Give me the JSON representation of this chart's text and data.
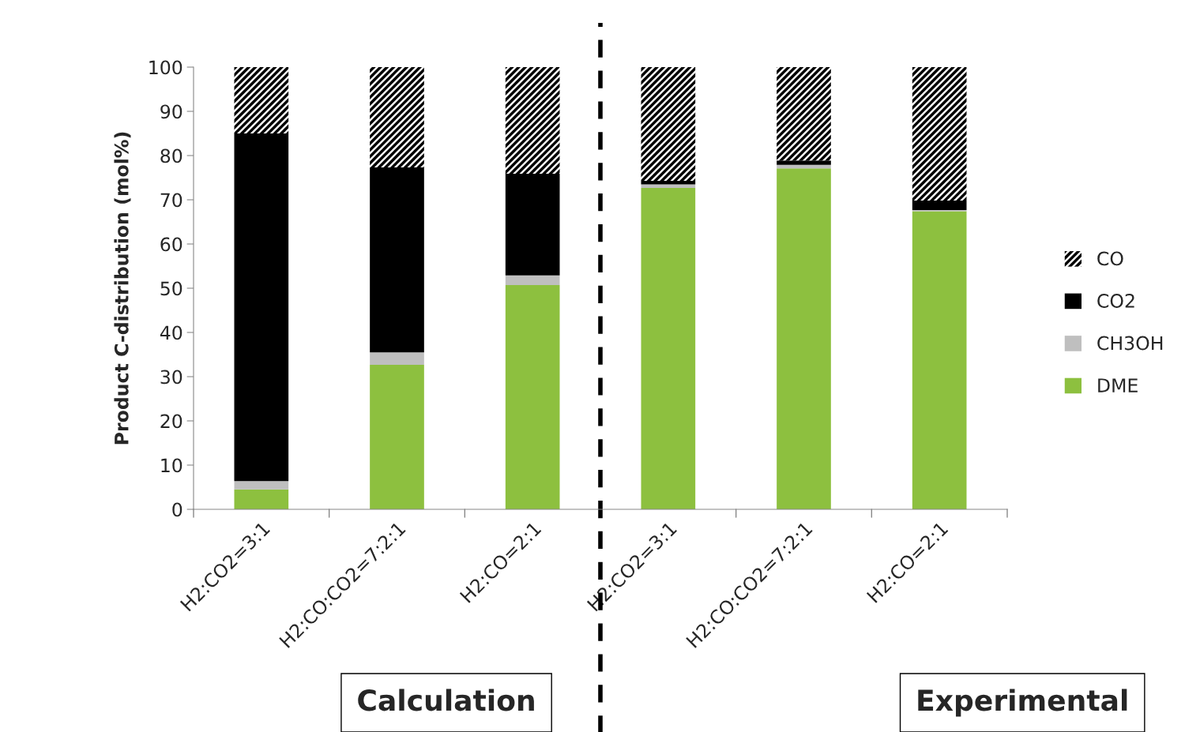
{
  "chart_data": {
    "type": "bar",
    "stacked": true,
    "ylabel": "Product C-distribution (mol%)",
    "categories": [
      "H2:CO2=3:1",
      "H2:CO:CO2=7:2:1",
      "H2:CO=2:1",
      "H2:CO2=3:1",
      "H2:CO:CO2=7:2:1",
      "H2:CO=2:1"
    ],
    "series": [
      {
        "name": "DME",
        "color": "#8dc03f",
        "values": [
          4.5,
          32.7,
          50.7,
          72.7,
          77.1,
          67.4
        ]
      },
      {
        "name": "CH3OH",
        "color": "#bfbfbf",
        "values": [
          1.9,
          2.8,
          2.2,
          0.8,
          0.8,
          0.3
        ]
      },
      {
        "name": "CO2",
        "color": "#000000",
        "values": [
          78.6,
          41.8,
          23.0,
          0.8,
          1.0,
          2.1
        ]
      },
      {
        "name": "CO",
        "color": "#000000",
        "values": [
          15.0,
          22.7,
          24.1,
          25.7,
          21.1,
          30.2
        ]
      }
    ],
    "ylim": [
      0,
      100
    ],
    "yticks": [
      0,
      10,
      20,
      30,
      40,
      50,
      60,
      70,
      80,
      90,
      100
    ],
    "annotations": [
      "Calculation",
      "Experimental"
    ],
    "legend": "right",
    "grid": false
  }
}
